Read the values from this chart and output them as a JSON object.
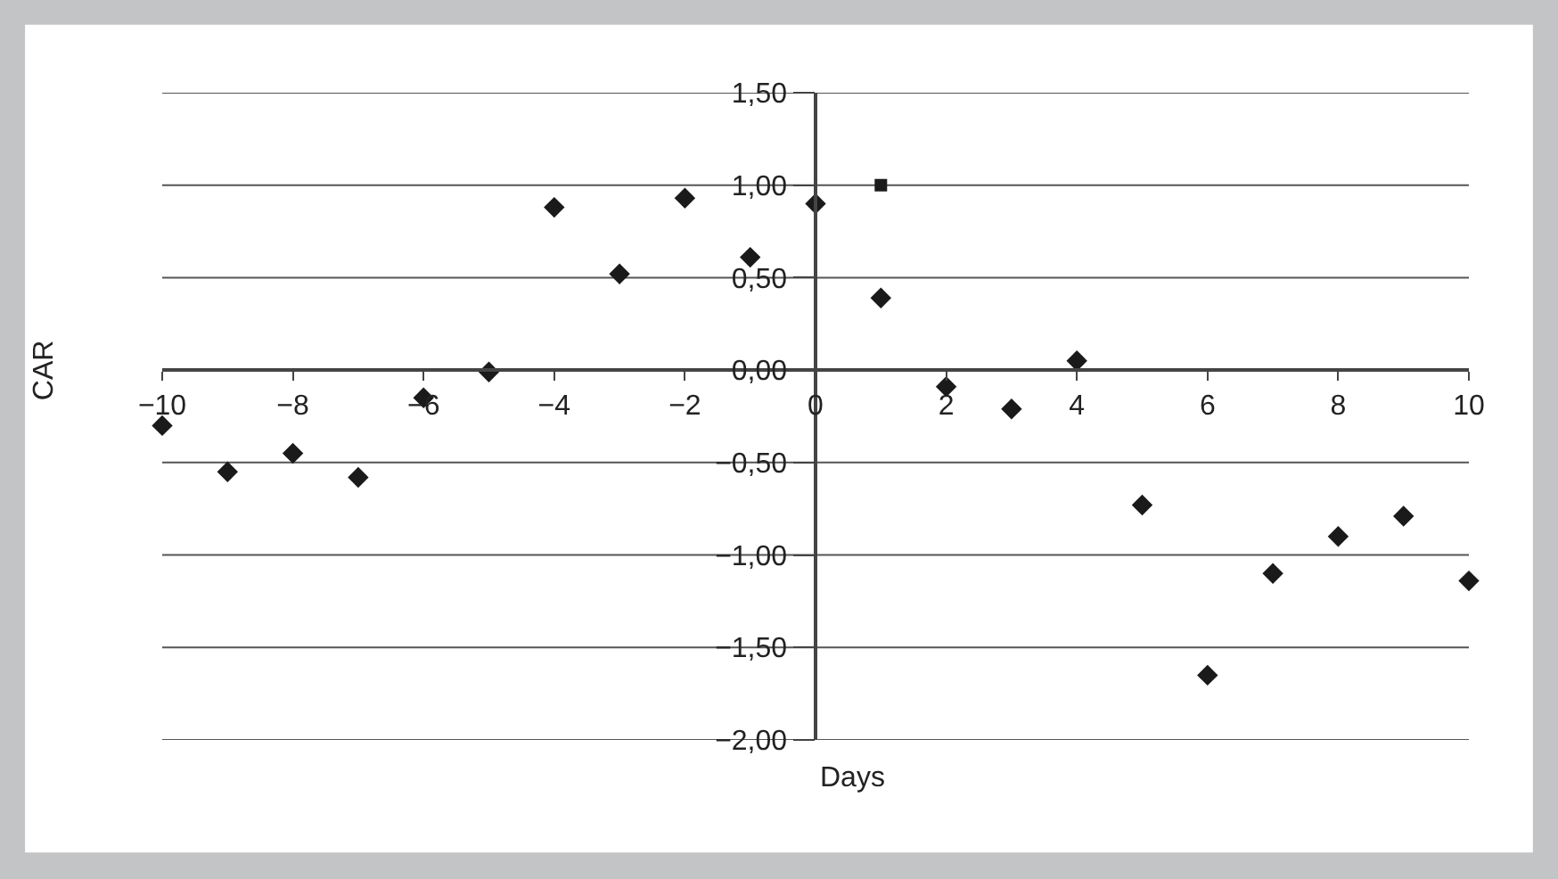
{
  "chart_data": {
    "type": "scatter",
    "xlabel": "Days",
    "ylabel": "CAR",
    "series": [
      {
        "color": "#1a1a1a",
        "marker": "diamond",
        "x": [
          -10,
          -9,
          -8,
          -7,
          -6,
          -5,
          -4,
          -3,
          -2,
          -1,
          0,
          1,
          2,
          3,
          4,
          5,
          6,
          7,
          8,
          9,
          10
        ],
        "values": [
          -0.3,
          -0.55,
          -0.45,
          -0.58,
          -0.15,
          -0.01,
          0.88,
          0.52,
          0.93,
          0.61,
          0.9,
          0.39,
          -0.09,
          -0.21,
          0.05,
          -0.73,
          -1.65,
          -1.1,
          -0.9,
          -0.79,
          -1.14
        ]
      },
      {
        "color": "#1a1a1a",
        "marker": "square",
        "x": [
          1
        ],
        "values": [
          1.0
        ]
      }
    ],
    "xlim": [
      -10,
      10
    ],
    "xticks": [
      {
        "value": -10,
        "label": "−10"
      },
      {
        "value": -8,
        "label": "−8"
      },
      {
        "value": -6,
        "label": "−6"
      },
      {
        "value": -4,
        "label": "−4"
      },
      {
        "value": -2,
        "label": "−2"
      },
      0,
      2,
      4,
      6,
      8,
      10
    ],
    "ylim": [
      -2,
      1.5
    ],
    "yticks": [
      {
        "value": -2,
        "label": "−2,00"
      },
      {
        "value": -1.5,
        "label": "−1,50"
      },
      {
        "value": -1,
        "label": "−1,00"
      },
      {
        "value": -0.5,
        "label": "−0,50"
      },
      {
        "value": 0,
        "label": "0,00"
      },
      {
        "value": 0.5,
        "label": "0,50"
      },
      {
        "value": 1,
        "label": "1,00"
      },
      {
        "value": 1.5,
        "label": "1,50"
      }
    ],
    "grid": "y"
  }
}
